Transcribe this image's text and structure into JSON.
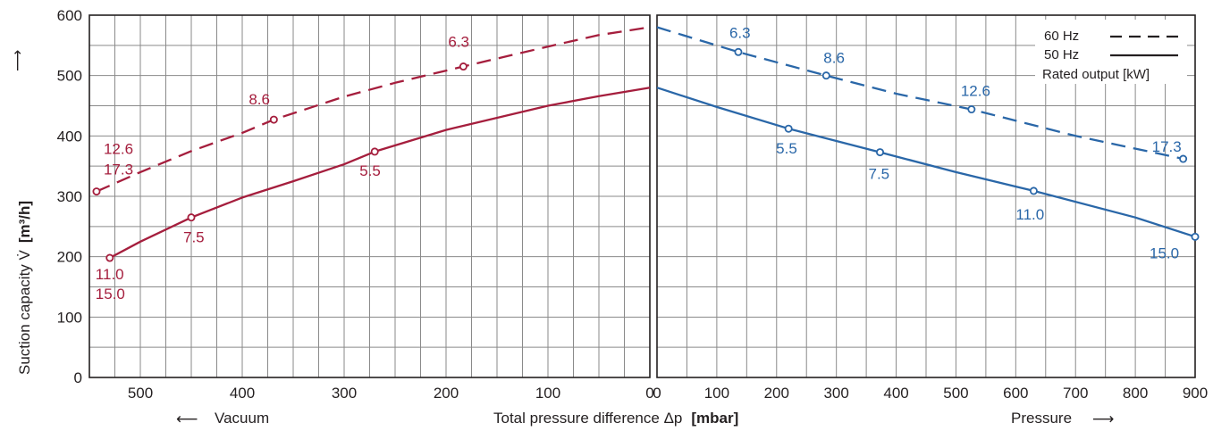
{
  "chart_data": {
    "type": "line",
    "xlabel": "Total pressure difference  Δp",
    "xlabel_unit": "[mbar]",
    "ylabel": "Suction capacity V̇",
    "ylabel_unit": "[m³/h]",
    "ylabel_arrow": "⟶",
    "y_ticks": [
      "0",
      "100",
      "200",
      "300",
      "400",
      "500",
      "600"
    ],
    "ylim": [
      0,
      600
    ],
    "grid": true,
    "legend_placement": "top-right",
    "colors": {
      "vacuum": "#a51e3d",
      "pressure": "#2a67a8",
      "grid": "#8a8a8a",
      "axis": "#231f20"
    },
    "legend": {
      "items": [
        {
          "name": "60 Hz",
          "style": "dashed"
        },
        {
          "name": "50 Hz",
          "style": "solid"
        }
      ],
      "note": "Rated output [kW]"
    },
    "panels": [
      {
        "name": "vacuum",
        "direction_label": "Vacuum",
        "direction_arrow": "⟵",
        "xlim": [
          550,
          0
        ],
        "x_ticks": [
          "500",
          "400",
          "300",
          "200",
          "100",
          "0"
        ],
        "series": [
          {
            "frequency": "60 Hz",
            "style": "dashed",
            "curve": [
              [
                543,
                308
              ],
              [
                500,
                340
              ],
              [
                450,
                375
              ],
              [
                400,
                405
              ],
              [
                369,
                427
              ],
              [
                300,
                465
              ],
              [
                250,
                488
              ],
              [
                183,
                515
              ],
              [
                100,
                548
              ],
              [
                50,
                567
              ],
              [
                0,
                580
              ]
            ],
            "points": [
              {
                "x": 543,
                "y": 308,
                "labels": [
                  "12.6",
                  "17.3"
                ]
              },
              {
                "x": 369,
                "y": 427,
                "labels": [
                  "8.6"
                ]
              },
              {
                "x": 183,
                "y": 515,
                "labels": [
                  "6.3"
                ]
              }
            ]
          },
          {
            "frequency": "50 Hz",
            "style": "solid",
            "curve": [
              [
                530,
                198
              ],
              [
                500,
                225
              ],
              [
                450,
                265
              ],
              [
                400,
                298
              ],
              [
                350,
                325
              ],
              [
                300,
                353
              ],
              [
                270,
                374
              ],
              [
                200,
                410
              ],
              [
                100,
                450
              ],
              [
                50,
                466
              ],
              [
                0,
                480
              ]
            ],
            "points": [
              {
                "x": 530,
                "y": 198,
                "labels": [
                  "11.0",
                  "15.0"
                ]
              },
              {
                "x": 450,
                "y": 265,
                "labels": [
                  "7.5"
                ]
              },
              {
                "x": 270,
                "y": 374,
                "labels": [
                  "5.5"
                ]
              }
            ]
          }
        ]
      },
      {
        "name": "pressure",
        "direction_label": "Pressure",
        "direction_arrow": "⟶",
        "xlim": [
          0,
          900
        ],
        "x_ticks": [
          "0",
          "100",
          "200",
          "300",
          "400",
          "500",
          "600",
          "700",
          "800",
          "900"
        ],
        "series": [
          {
            "frequency": "60 Hz",
            "style": "dashed",
            "curve": [
              [
                0,
                580
              ],
              [
                136,
                539
              ],
              [
                283,
                500
              ],
              [
                400,
                470
              ],
              [
                526,
                444
              ],
              [
                700,
                400
              ],
              [
                880,
                362
              ]
            ],
            "points": [
              {
                "x": 136,
                "y": 539,
                "labels": [
                  "6.3"
                ]
              },
              {
                "x": 283,
                "y": 500,
                "labels": [
                  "8.6"
                ]
              },
              {
                "x": 526,
                "y": 444,
                "labels": [
                  "12.6"
                ]
              },
              {
                "x": 880,
                "y": 362,
                "labels": [
                  "17.3"
                ]
              }
            ]
          },
          {
            "frequency": "50 Hz",
            "style": "solid",
            "curve": [
              [
                0,
                480
              ],
              [
                100,
                448
              ],
              [
                220,
                412
              ],
              [
                373,
                373
              ],
              [
                500,
                340
              ],
              [
                630,
                309
              ],
              [
                800,
                265
              ],
              [
                900,
                233
              ]
            ],
            "points": [
              {
                "x": 220,
                "y": 412,
                "labels": [
                  "5.5"
                ]
              },
              {
                "x": 373,
                "y": 373,
                "labels": [
                  "7.5"
                ]
              },
              {
                "x": 630,
                "y": 309,
                "labels": [
                  "11.0"
                ]
              },
              {
                "x": 900,
                "y": 233,
                "labels": [
                  "15.0"
                ]
              }
            ]
          }
        ]
      }
    ]
  }
}
